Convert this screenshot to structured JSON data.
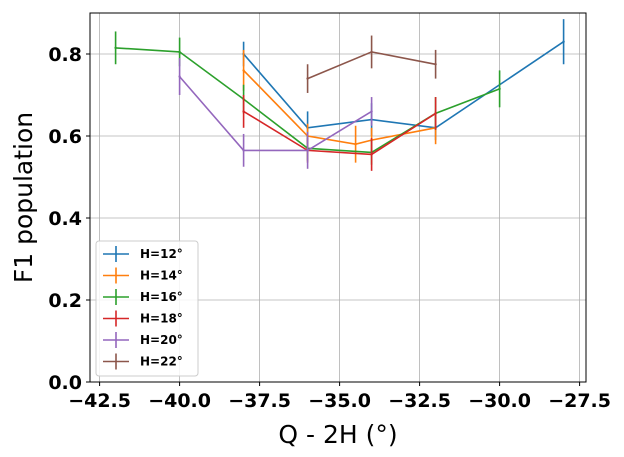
{
  "chart_data": {
    "type": "line",
    "title": "",
    "xlabel": "Q - 2H (°)",
    "ylabel": "F1 population",
    "xlim": [
      -42.8,
      -27.3
    ],
    "ylim": [
      0.0,
      0.9
    ],
    "xticks": [
      -42.5,
      -40.0,
      -37.5,
      -35.0,
      -32.5,
      -30.0,
      -27.5
    ],
    "xtick_labels": [
      "−42.5",
      "−40.0",
      "−37.5",
      "−35.0",
      "−32.5",
      "−30.0",
      "−27.5"
    ],
    "yticks": [
      0.0,
      0.2,
      0.4,
      0.6,
      0.8
    ],
    "ytick_labels": [
      "0.0",
      "0.2",
      "0.4",
      "0.6",
      "0.8"
    ],
    "grid": true,
    "legend_position": "lower-left",
    "series": [
      {
        "name": "H=12°",
        "color": "#1f77b4",
        "x": [
          -38,
          -36,
          -34,
          -32,
          -28
        ],
        "y": [
          0.8,
          0.62,
          0.64,
          0.62,
          0.83
        ],
        "yerr": [
          0.03,
          0.04,
          0.04,
          0.03,
          0.055
        ]
      },
      {
        "name": "H=14°",
        "color": "#ff7f0e",
        "x": [
          -38,
          -36,
          -34.5,
          -34,
          -32
        ],
        "y": [
          0.76,
          0.6,
          0.58,
          0.59,
          0.62
        ],
        "yerr": [
          0.05,
          0.03,
          0.045,
          0.03,
          0.04
        ]
      },
      {
        "name": "H=16°",
        "color": "#2ca02c",
        "x": [
          -42,
          -40,
          -38,
          -36,
          -34,
          -32,
          -30
        ],
        "y": [
          0.815,
          0.805,
          0.69,
          0.57,
          0.56,
          0.655,
          0.715
        ],
        "yerr": [
          0.04,
          0.035,
          0.035,
          0.03,
          0.03,
          0.04,
          0.045
        ]
      },
      {
        "name": "H=18°",
        "color": "#d62728",
        "x": [
          -38,
          -36,
          -34,
          -32
        ],
        "y": [
          0.66,
          0.565,
          0.555,
          0.655
        ],
        "yerr": [
          0.04,
          0.03,
          0.04,
          0.04
        ]
      },
      {
        "name": "H=20°",
        "color": "#9467bd",
        "x": [
          -40,
          -38,
          -36,
          -34
        ],
        "y": [
          0.745,
          0.565,
          0.565,
          0.66
        ],
        "yerr": [
          0.045,
          0.04,
          0.045,
          0.035
        ]
      },
      {
        "name": "H=22°",
        "color": "#8c564b",
        "x": [
          -36,
          -34,
          -32
        ],
        "y": [
          0.74,
          0.805,
          0.775
        ],
        "yerr": [
          0.035,
          0.04,
          0.035
        ]
      }
    ]
  }
}
